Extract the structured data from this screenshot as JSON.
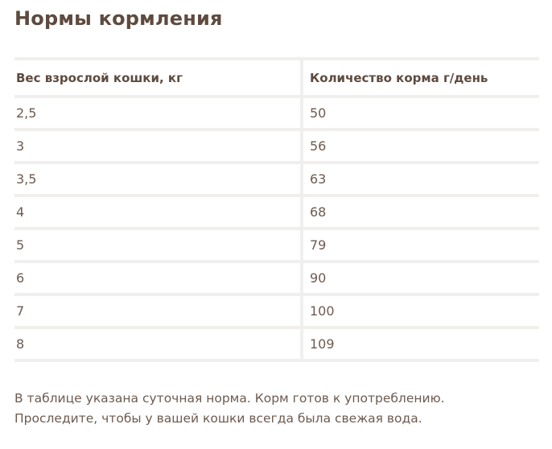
{
  "title": "Нормы кормления",
  "table": {
    "headers": [
      "Вес взрослой кошки, кг",
      "Количество корма г/день"
    ],
    "rows": [
      [
        "2,5",
        "50"
      ],
      [
        "3",
        "56"
      ],
      [
        "3,5",
        "63"
      ],
      [
        "4",
        "68"
      ],
      [
        "5",
        "79"
      ],
      [
        "6",
        "90"
      ],
      [
        "7",
        "100"
      ],
      [
        "8",
        "109"
      ]
    ]
  },
  "note": {
    "line1": "В таблице указана суточная норма. Корм готов к употреблению.",
    "line2": "Проследите, чтобы у вашей кошки всегда была свежая вода."
  },
  "colors": {
    "text": "#5e4a3f",
    "divider": "#f1efed"
  }
}
